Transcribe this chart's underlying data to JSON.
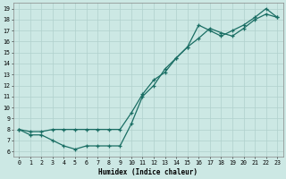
{
  "xlabel": "Humidex (Indice chaleur)",
  "background_color": "#cce8e4",
  "grid_color": "#b0d0cc",
  "line_color": "#1a6e64",
  "xlim": [
    -0.5,
    23.5
  ],
  "ylim": [
    5.5,
    19.5
  ],
  "xticks": [
    0,
    1,
    2,
    3,
    4,
    5,
    6,
    7,
    8,
    9,
    10,
    11,
    12,
    13,
    14,
    15,
    16,
    17,
    18,
    19,
    20,
    21,
    22,
    23
  ],
  "yticks": [
    6,
    7,
    8,
    9,
    10,
    11,
    12,
    13,
    14,
    15,
    16,
    17,
    18,
    19
  ],
  "line1_x": [
    0,
    1,
    2,
    3,
    4,
    5,
    6,
    7,
    8,
    9,
    10,
    11,
    12,
    13,
    14,
    15,
    16,
    17,
    18,
    19,
    20,
    21,
    22,
    23
  ],
  "line1_y": [
    8.0,
    7.5,
    7.5,
    7.0,
    6.5,
    6.2,
    6.5,
    6.5,
    6.5,
    6.5,
    8.5,
    11.0,
    12.0,
    13.5,
    14.5,
    15.5,
    17.5,
    17.0,
    16.5,
    17.0,
    17.5,
    18.2,
    19.0,
    18.2
  ],
  "line2_x": [
    0,
    1,
    2,
    3,
    4,
    5,
    6,
    7,
    8,
    9,
    10,
    11,
    12,
    13,
    14,
    15,
    16,
    17,
    18,
    19,
    20,
    21,
    22,
    23
  ],
  "line2_y": [
    8.0,
    7.8,
    7.8,
    8.0,
    8.0,
    8.0,
    8.0,
    8.0,
    8.0,
    8.0,
    9.5,
    11.2,
    12.5,
    13.2,
    14.5,
    15.5,
    16.3,
    17.2,
    16.8,
    16.5,
    17.2,
    18.0,
    18.5,
    18.2
  ]
}
